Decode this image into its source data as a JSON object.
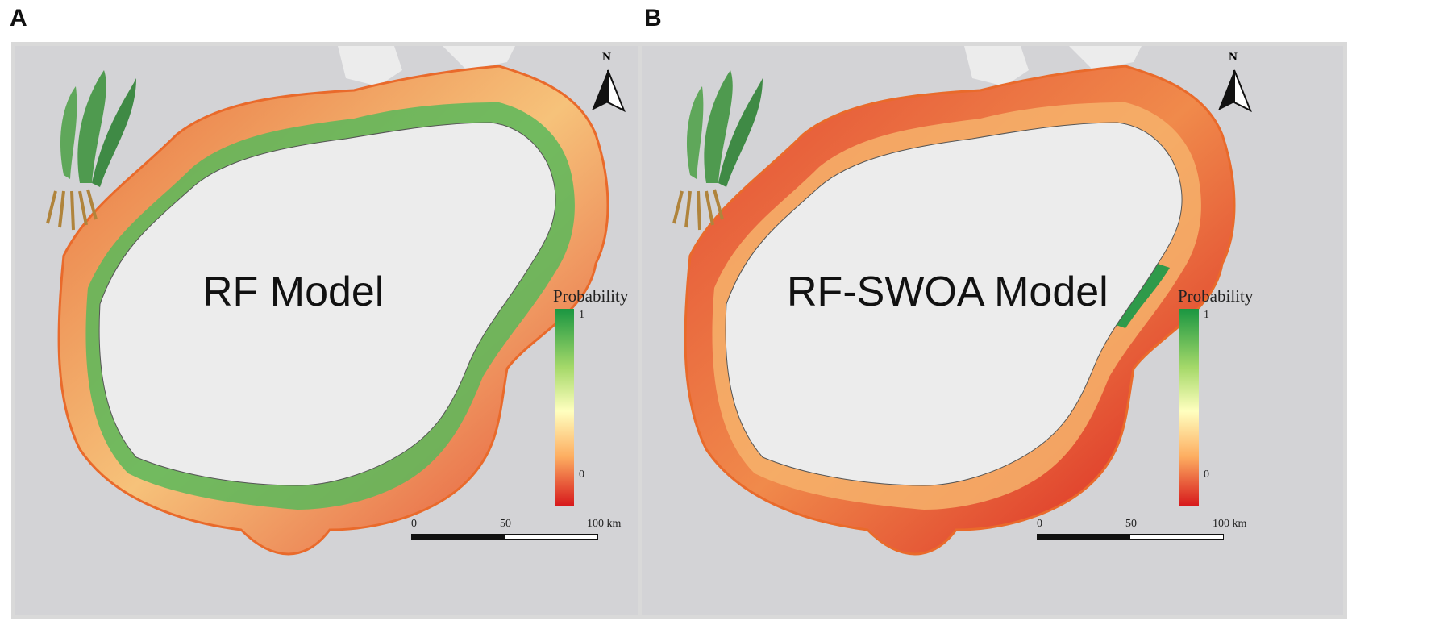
{
  "panels": [
    {
      "letter": "A",
      "model_label": "RF Model",
      "legend": {
        "title": "Probability",
        "max": "1",
        "min": "0"
      },
      "scale": {
        "t0": "0",
        "t1": "50",
        "t2": "100 km"
      },
      "north": "N",
      "colors": [
        "#1a9641",
        "#a6d96a",
        "#ffffbf",
        "#fdae61",
        "#d7191c"
      ]
    },
    {
      "letter": "B",
      "model_label": "RF-SWOA Model",
      "legend": {
        "title": "Probability",
        "max": "1",
        "min": "0"
      },
      "scale": {
        "t0": "0",
        "t1": "50",
        "t2": "100 km"
      },
      "north": "N",
      "colors": [
        "#1a9641",
        "#a6d96a",
        "#ffffbf",
        "#fdae61",
        "#d7191c"
      ]
    }
  ]
}
